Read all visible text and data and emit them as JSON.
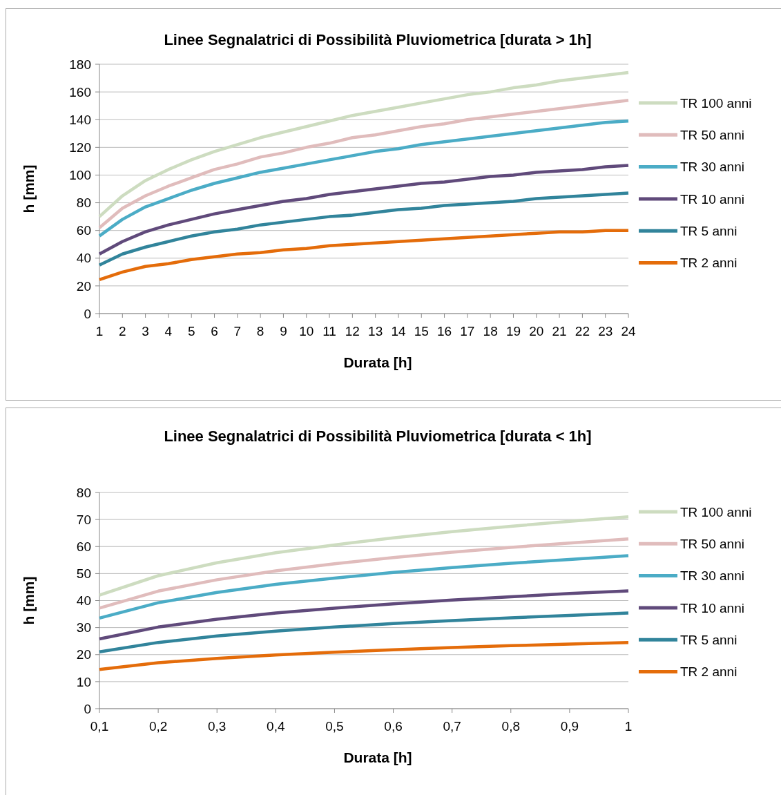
{
  "chart_data": [
    {
      "type": "line",
      "title": "Linee Segnalatrici di Possibilità Pluviometrica [durata > 1h]",
      "xlabel": "Durata [h]",
      "ylabel": "h [mm]",
      "x": [
        1,
        2,
        3,
        4,
        5,
        6,
        7,
        8,
        9,
        10,
        11,
        12,
        13,
        14,
        15,
        16,
        17,
        18,
        19,
        20,
        21,
        22,
        23,
        24
      ],
      "xlim": [
        1,
        24
      ],
      "xticks": [
        1,
        2,
        3,
        4,
        5,
        6,
        7,
        8,
        9,
        10,
        11,
        12,
        13,
        14,
        15,
        16,
        17,
        18,
        19,
        20,
        21,
        22,
        23,
        24
      ],
      "ylim": [
        0,
        180
      ],
      "yticks": [
        0,
        20,
        40,
        60,
        80,
        100,
        120,
        140,
        160,
        180
      ],
      "grid": "y",
      "legend": "right",
      "marker": "none",
      "line_style": "solid",
      "series": [
        {
          "name": "TR 100 anni",
          "color": "#cddcc0",
          "values": [
            70,
            85,
            96,
            104,
            111,
            117,
            122,
            127,
            131,
            135,
            139,
            143,
            146,
            149,
            152,
            155,
            158,
            160,
            163,
            165,
            168,
            170,
            172,
            174
          ]
        },
        {
          "name": "TR 50 anni",
          "color": "#e0bcbc",
          "values": [
            62,
            76,
            85,
            92,
            98,
            104,
            108,
            113,
            116,
            120,
            123,
            127,
            129,
            132,
            135,
            137,
            140,
            142,
            144,
            146,
            148,
            150,
            152,
            154
          ]
        },
        {
          "name": "TR 30 anni",
          "color": "#4bacc6",
          "values": [
            56,
            68,
            77,
            83,
            89,
            94,
            98,
            102,
            105,
            108,
            111,
            114,
            117,
            119,
            122,
            124,
            126,
            128,
            130,
            132,
            134,
            136,
            138,
            139
          ]
        },
        {
          "name": "TR 10 anni",
          "color": "#604a7b",
          "values": [
            43,
            52,
            59,
            64,
            68,
            72,
            75,
            78,
            81,
            83,
            86,
            88,
            90,
            92,
            94,
            95,
            97,
            99,
            100,
            102,
            103,
            104,
            106,
            107
          ]
        },
        {
          "name": "TR 5 anni",
          "color": "#31849b",
          "values": [
            35,
            43,
            48,
            52,
            56,
            59,
            61,
            64,
            66,
            68,
            70,
            71,
            73,
            75,
            76,
            78,
            79,
            80,
            81,
            83,
            84,
            85,
            86,
            87
          ]
        },
        {
          "name": "TR 2 anni",
          "color": "#e46c0a",
          "values": [
            24.5,
            30,
            34,
            36,
            39,
            41,
            43,
            44,
            46,
            47,
            49,
            50,
            51,
            52,
            53,
            54,
            55,
            56,
            57,
            58,
            59,
            59,
            60,
            60
          ]
        }
      ]
    },
    {
      "type": "line",
      "title": "Linee Segnalatrici di Possibilità Pluviometrica [durata < 1h]",
      "xlabel": "Durata [h]",
      "ylabel": "h [mm]",
      "x": [
        0.1,
        0.2,
        0.3,
        0.4,
        0.5,
        0.6,
        0.7,
        0.8,
        0.9,
        1
      ],
      "xlim": [
        0.1,
        1
      ],
      "xticks": [
        {
          "value": 0.1,
          "label": "0,1"
        },
        {
          "value": 0.2,
          "label": "0,2"
        },
        {
          "value": 0.3,
          "label": "0,3"
        },
        {
          "value": 0.4,
          "label": "0,4"
        },
        {
          "value": 0.5,
          "label": "0,5"
        },
        {
          "value": 0.6,
          "label": "0,6"
        },
        {
          "value": 0.7,
          "label": "0,7"
        },
        {
          "value": 0.8,
          "label": "0,8"
        },
        {
          "value": 0.9,
          "label": "0,9"
        },
        1
      ],
      "ylim": [
        0,
        80
      ],
      "yticks": [
        0,
        10,
        20,
        30,
        40,
        50,
        60,
        70,
        80
      ],
      "grid": "y",
      "legend": "right",
      "marker": "none",
      "line_style": "solid",
      "series": [
        {
          "name": "TR 100 anni",
          "color": "#cddcc0",
          "values": [
            42,
            49.2,
            54,
            57.7,
            60.6,
            63.2,
            65.5,
            67.5,
            69.3,
            71
          ]
        },
        {
          "name": "TR 50 anni",
          "color": "#e0bcbc",
          "values": [
            37.2,
            43.5,
            47.7,
            51,
            53.6,
            55.9,
            57.9,
            59.7,
            61.3,
            62.8
          ]
        },
        {
          "name": "TR 30 anni",
          "color": "#4bacc6",
          "values": [
            33.5,
            39.2,
            43,
            46,
            48.3,
            50.4,
            52.2,
            53.8,
            55.2,
            56.6
          ]
        },
        {
          "name": "TR 10 anni",
          "color": "#604a7b",
          "values": [
            25.8,
            30.2,
            33.1,
            35.4,
            37.2,
            38.8,
            40.2,
            41.4,
            42.6,
            43.6
          ]
        },
        {
          "name": "TR 5 anni",
          "color": "#31849b",
          "values": [
            21,
            24.5,
            26.9,
            28.7,
            30.2,
            31.5,
            32.6,
            33.6,
            34.5,
            35.4
          ]
        },
        {
          "name": "TR 2 anni",
          "color": "#e46c0a",
          "values": [
            14.5,
            17,
            18.6,
            19.9,
            20.9,
            21.8,
            22.6,
            23.3,
            23.9,
            24.5
          ]
        }
      ]
    }
  ]
}
